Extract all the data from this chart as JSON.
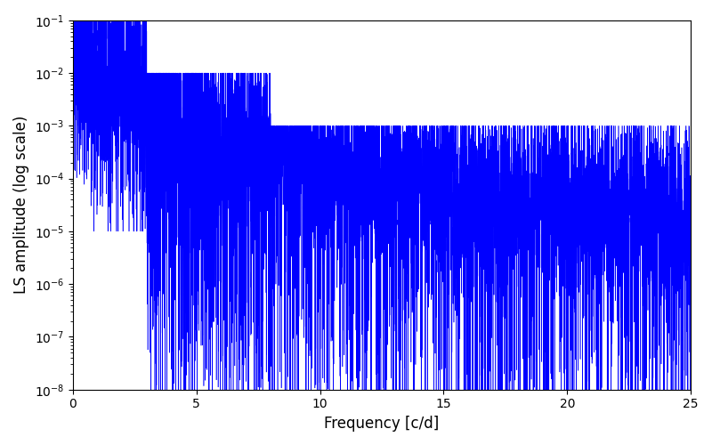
{
  "line_color": "#0000ff",
  "xlabel": "Frequency [c/d]",
  "ylabel": "LS amplitude (log scale)",
  "xlim": [
    0,
    25
  ],
  "ylim": [
    1e-08,
    0.1
  ],
  "freq_max": 25.0,
  "n_points": 8000,
  "seed": 7,
  "line_width": 0.4,
  "background_color": "#ffffff",
  "figsize": [
    8.0,
    5.0
  ],
  "dpi": 100,
  "envelope_peak": 0.05,
  "envelope_f0": 0.8,
  "envelope_alpha": 2.2,
  "noise_std": 1.2
}
